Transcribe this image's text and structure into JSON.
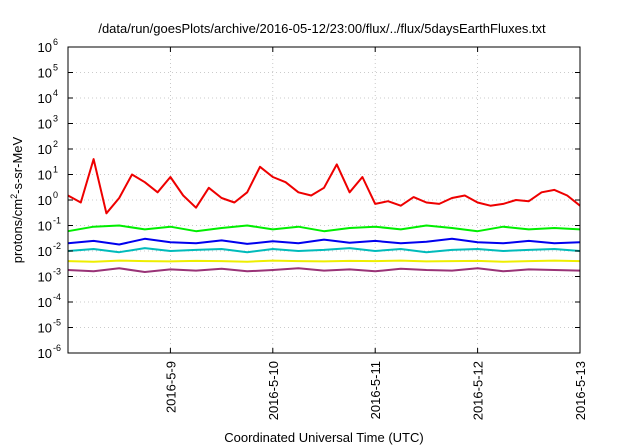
{
  "chart_data": {
    "type": "line",
    "title": "/data/run/goesPlots/archive/2016-05-12/23:00/flux/../flux/5daysEarthFluxes.txt",
    "xlabel": "Coordinated Universal Time (UTC)",
    "ylabel_parts": [
      "protons/cm",
      "2",
      "-s-sr-MeV"
    ],
    "y_scale": "log",
    "ylim_exp": [
      -6,
      6
    ],
    "y_ticks": [
      {
        "base": "10",
        "exp": "-6"
      },
      {
        "base": "10",
        "exp": "-5"
      },
      {
        "base": "10",
        "exp": "-4"
      },
      {
        "base": "10",
        "exp": "-3"
      },
      {
        "base": "10",
        "exp": "-2"
      },
      {
        "base": "10",
        "exp": "-1"
      },
      {
        "base": "10",
        "exp": "0"
      },
      {
        "base": "10",
        "exp": "1"
      },
      {
        "base": "10",
        "exp": "2"
      },
      {
        "base": "10",
        "exp": "3"
      },
      {
        "base": "10",
        "exp": "4"
      },
      {
        "base": "10",
        "exp": "5"
      },
      {
        "base": "10",
        "exp": "6"
      }
    ],
    "x_ticks": [
      "2016-5-9",
      "2016-5-10",
      "2016-5-11",
      "2016-5-12",
      "2016-5-13"
    ],
    "xlim": [
      "2016-05-08 00:00",
      "2016-05-13 00:00"
    ],
    "grid": true,
    "series": [
      {
        "color": "#ee0000",
        "x": [
          "2016-05-08 00:00",
          "2016-05-08 03:00",
          "2016-05-08 06:00",
          "2016-05-08 09:00",
          "2016-05-08 12:00",
          "2016-05-08 15:00",
          "2016-05-08 18:00",
          "2016-05-08 21:00",
          "2016-05-09 00:00",
          "2016-05-09 03:00",
          "2016-05-09 06:00",
          "2016-05-09 09:00",
          "2016-05-09 12:00",
          "2016-05-09 15:00",
          "2016-05-09 18:00",
          "2016-05-09 21:00",
          "2016-05-10 00:00",
          "2016-05-10 03:00",
          "2016-05-10 06:00",
          "2016-05-10 09:00",
          "2016-05-10 12:00",
          "2016-05-10 15:00",
          "2016-05-10 18:00",
          "2016-05-10 21:00",
          "2016-05-11 00:00",
          "2016-05-11 03:00",
          "2016-05-11 06:00",
          "2016-05-11 09:00",
          "2016-05-11 12:00",
          "2016-05-11 15:00",
          "2016-05-11 18:00",
          "2016-05-11 21:00",
          "2016-05-12 00:00",
          "2016-05-12 03:00",
          "2016-05-12 06:00",
          "2016-05-12 09:00",
          "2016-05-12 12:00",
          "2016-05-12 15:00",
          "2016-05-12 18:00",
          "2016-05-12 21:00",
          "2016-05-13 00:00"
        ],
        "y": [
          1.5,
          0.8,
          40,
          0.3,
          1.2,
          10,
          5,
          2,
          8,
          1.5,
          0.5,
          3,
          1.2,
          0.8,
          2,
          20,
          8,
          5,
          2,
          1.5,
          3,
          25,
          2,
          8,
          0.7,
          0.9,
          0.6,
          1.3,
          0.8,
          0.7,
          1.2,
          1.5,
          0.8,
          0.6,
          0.7,
          1,
          0.9,
          2,
          2.5,
          1.5,
          0.6
        ]
      },
      {
        "color": "#00ee00",
        "x": [
          "2016-05-08 00:00",
          "2016-05-08 06:00",
          "2016-05-08 12:00",
          "2016-05-08 18:00",
          "2016-05-09 00:00",
          "2016-05-09 06:00",
          "2016-05-09 12:00",
          "2016-05-09 18:00",
          "2016-05-10 00:00",
          "2016-05-10 06:00",
          "2016-05-10 12:00",
          "2016-05-10 18:00",
          "2016-05-11 00:00",
          "2016-05-11 06:00",
          "2016-05-11 12:00",
          "2016-05-11 18:00",
          "2016-05-12 00:00",
          "2016-05-12 06:00",
          "2016-05-12 12:00",
          "2016-05-12 18:00",
          "2016-05-13 00:00"
        ],
        "y": [
          0.06,
          0.09,
          0.1,
          0.07,
          0.09,
          0.06,
          0.08,
          0.1,
          0.07,
          0.09,
          0.06,
          0.08,
          0.09,
          0.07,
          0.1,
          0.08,
          0.06,
          0.09,
          0.07,
          0.08,
          0.07
        ]
      },
      {
        "color": "#00bbbb",
        "x": [
          "2016-05-08 00:00",
          "2016-05-08 06:00",
          "2016-05-08 12:00",
          "2016-05-08 18:00",
          "2016-05-09 00:00",
          "2016-05-09 06:00",
          "2016-05-09 12:00",
          "2016-05-09 18:00",
          "2016-05-10 00:00",
          "2016-05-10 06:00",
          "2016-05-10 12:00",
          "2016-05-10 18:00",
          "2016-05-11 00:00",
          "2016-05-11 06:00",
          "2016-05-11 12:00",
          "2016-05-11 18:00",
          "2016-05-12 00:00",
          "2016-05-12 06:00",
          "2016-05-12 12:00",
          "2016-05-12 18:00",
          "2016-05-13 00:00"
        ],
        "y": [
          0.01,
          0.012,
          0.009,
          0.013,
          0.01,
          0.011,
          0.012,
          0.009,
          0.012,
          0.01,
          0.011,
          0.013,
          0.01,
          0.012,
          0.009,
          0.011,
          0.012,
          0.01,
          0.011,
          0.012,
          0.01
        ]
      },
      {
        "color": "#0000ee",
        "x": [
          "2016-05-08 00:00",
          "2016-05-08 06:00",
          "2016-05-08 12:00",
          "2016-05-08 18:00",
          "2016-05-09 00:00",
          "2016-05-09 06:00",
          "2016-05-09 12:00",
          "2016-05-09 18:00",
          "2016-05-10 00:00",
          "2016-05-10 06:00",
          "2016-05-10 12:00",
          "2016-05-10 18:00",
          "2016-05-11 00:00",
          "2016-05-11 06:00",
          "2016-05-11 12:00",
          "2016-05-11 18:00",
          "2016-05-12 00:00",
          "2016-05-12 06:00",
          "2016-05-12 12:00",
          "2016-05-12 18:00",
          "2016-05-13 00:00"
        ],
        "y": [
          0.02,
          0.025,
          0.018,
          0.03,
          0.022,
          0.02,
          0.026,
          0.019,
          0.024,
          0.02,
          0.028,
          0.021,
          0.025,
          0.02,
          0.023,
          0.03,
          0.022,
          0.02,
          0.025,
          0.02,
          0.022
        ]
      },
      {
        "color": "#eeee00",
        "x": [
          "2016-05-08 00:00",
          "2016-05-08 06:00",
          "2016-05-08 12:00",
          "2016-05-08 18:00",
          "2016-05-09 00:00",
          "2016-05-09 06:00",
          "2016-05-09 12:00",
          "2016-05-09 18:00",
          "2016-05-10 00:00",
          "2016-05-10 06:00",
          "2016-05-10 12:00",
          "2016-05-10 18:00",
          "2016-05-11 00:00",
          "2016-05-11 06:00",
          "2016-05-11 12:00",
          "2016-05-11 18:00",
          "2016-05-12 00:00",
          "2016-05-12 06:00",
          "2016-05-12 12:00",
          "2016-05-12 18:00",
          "2016-05-13 00:00"
        ],
        "y": [
          0.004,
          0.0038,
          0.0042,
          0.004,
          0.0039,
          0.0041,
          0.004,
          0.0038,
          0.0042,
          0.004,
          0.0039,
          0.0041,
          0.004,
          0.0042,
          0.0039,
          0.004,
          0.0041,
          0.0038,
          0.004,
          0.0042,
          0.004
        ]
      },
      {
        "color": "#993377",
        "x": [
          "2016-05-08 00:00",
          "2016-05-08 06:00",
          "2016-05-08 12:00",
          "2016-05-08 18:00",
          "2016-05-09 00:00",
          "2016-05-09 06:00",
          "2016-05-09 12:00",
          "2016-05-09 18:00",
          "2016-05-10 00:00",
          "2016-05-10 06:00",
          "2016-05-10 12:00",
          "2016-05-10 18:00",
          "2016-05-11 00:00",
          "2016-05-11 06:00",
          "2016-05-11 12:00",
          "2016-05-11 18:00",
          "2016-05-12 00:00",
          "2016-05-12 06:00",
          "2016-05-12 12:00",
          "2016-05-12 18:00",
          "2016-05-13 00:00"
        ],
        "y": [
          0.0018,
          0.0016,
          0.0021,
          0.0015,
          0.0019,
          0.0017,
          0.002,
          0.0016,
          0.0018,
          0.0021,
          0.0017,
          0.0019,
          0.0016,
          0.002,
          0.0018,
          0.0017,
          0.0021,
          0.0016,
          0.0019,
          0.0018,
          0.0017
        ]
      }
    ]
  }
}
